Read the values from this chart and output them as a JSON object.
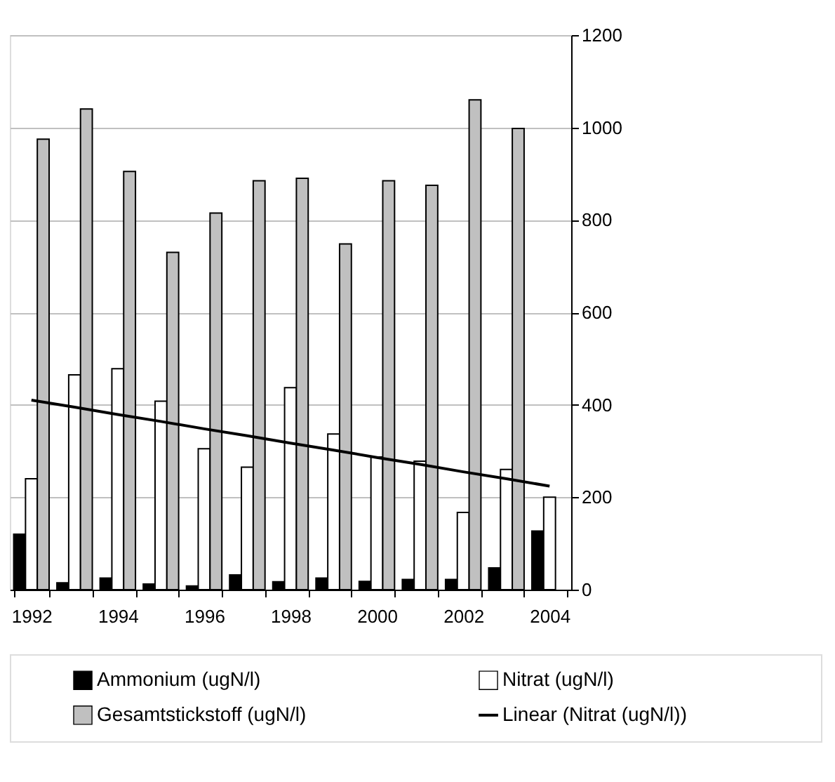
{
  "chart_data": {
    "type": "bar",
    "categories": [
      "1992",
      null,
      "1994",
      null,
      "1996",
      null,
      "1998",
      null,
      "2000",
      null,
      "2002",
      null,
      "2004"
    ],
    "series": [
      {
        "name": "Ammonium (ugN/l)",
        "color": "#000000",
        "values": [
          120,
          15,
          25,
          12,
          8,
          32,
          17,
          25,
          18,
          22,
          22,
          47,
          127
        ]
      },
      {
        "name": "Nitrat (ugN/l)",
        "color": "#ffffff",
        "values": [
          240,
          465,
          478,
          408,
          305,
          265,
          437,
          337,
          287,
          278,
          167,
          260,
          200
        ]
      },
      {
        "name": "Gesamtstickstoff (ugN/l)",
        "color": "#c0c0c0",
        "values": [
          975,
          1040,
          905,
          730,
          815,
          885,
          890,
          748,
          885,
          875,
          1060,
          998,
          null
        ]
      },
      {
        "name": "Linear (Nitrat (ugN/l))",
        "type": "line",
        "color": "#000000",
        "values": [
          410,
          395,
          379,
          364,
          348,
          333,
          317,
          302,
          286,
          271,
          255,
          240,
          224
        ]
      }
    ],
    "ylim": [
      0,
      1200
    ],
    "yticks": [
      0,
      200,
      400,
      600,
      800,
      1000,
      1200
    ],
    "grid": "y",
    "legend": "bottom",
    "marker": "none",
    "line_style": "solid"
  }
}
